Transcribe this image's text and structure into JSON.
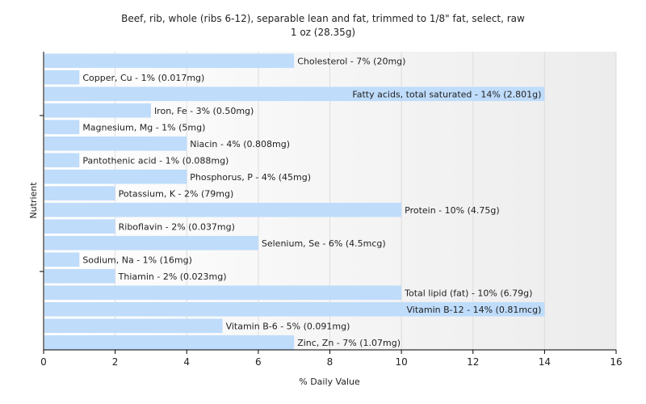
{
  "chart_data": {
    "type": "bar",
    "orientation": "horizontal",
    "title": [
      "Beef, rib, whole (ribs 6-12), separable lean and fat, trimmed to 1/8\" fat, select, raw",
      "1 oz (28.35g)"
    ],
    "xlabel": "% Daily Value",
    "ylabel": "Nutrient",
    "xlim": [
      0,
      16
    ],
    "xticks": [
      "0",
      "2",
      "4",
      "6",
      "8",
      "10",
      "12",
      "14",
      "16"
    ],
    "grid": true,
    "bar_color": "#bfdcfb",
    "categories": [
      "Cholesterol",
      "Copper, Cu",
      "Fatty acids, total saturated",
      "Iron, Fe",
      "Magnesium, Mg",
      "Niacin",
      "Pantothenic acid",
      "Phosphorus, P",
      "Potassium, K",
      "Protein",
      "Riboflavin",
      "Selenium, Se",
      "Sodium, Na",
      "Thiamin",
      "Total lipid (fat)",
      "Vitamin B-12",
      "Vitamin B-6",
      "Zinc, Zn"
    ],
    "values": [
      7,
      1,
      14,
      3,
      1,
      4,
      1,
      4,
      2,
      10,
      2,
      6,
      1,
      2,
      10,
      14,
      5,
      7
    ],
    "labels": [
      "Cholesterol - 7% (20mg)",
      "Copper, Cu - 1% (0.017mg)",
      "Fatty acids, total saturated - 14% (2.801g)",
      "Iron, Fe - 3% (0.50mg)",
      "Magnesium, Mg - 1% (5mg)",
      "Niacin - 4% (0.808mg)",
      "Pantothenic acid - 1% (0.088mg)",
      "Phosphorus, P - 4% (45mg)",
      "Potassium, K - 2% (79mg)",
      "Protein - 10% (4.75g)",
      "Riboflavin - 2% (0.037mg)",
      "Selenium, Se - 6% (4.5mcg)",
      "Sodium, Na - 1% (16mg)",
      "Thiamin - 2% (0.023mg)",
      "Total lipid (fat) - 10% (6.79g)",
      "Vitamin B-12 - 14% (0.81mcg)",
      "Vitamin B-6 - 5% (0.091mg)",
      "Zinc, Zn - 7% (1.07mg)"
    ]
  }
}
